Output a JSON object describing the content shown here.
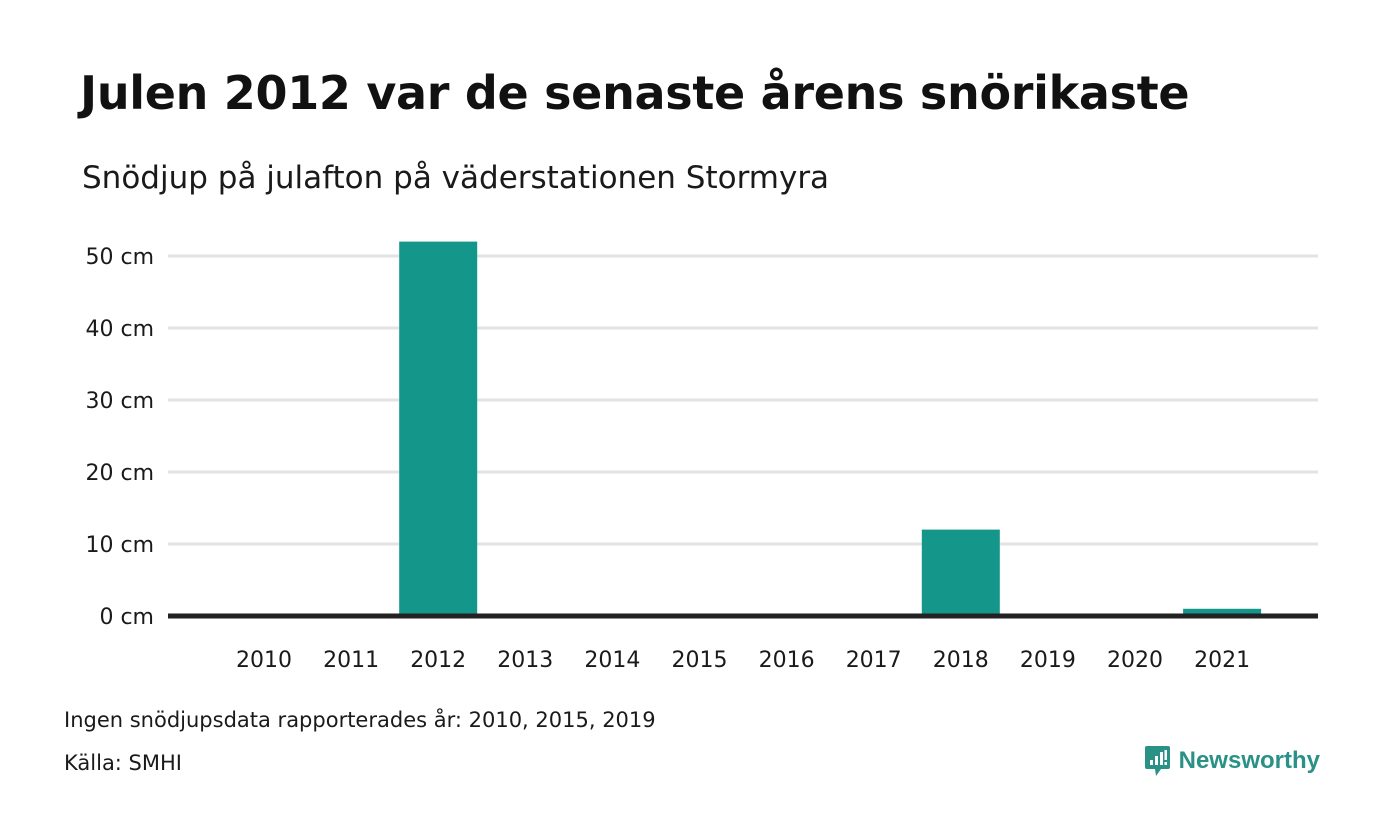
{
  "title": "Julen 2012 var de senaste årens snörikaste",
  "subtitle": "Snödjup på julafton på väderstationen Stormyra",
  "note": "Ingen snödjupsdata rapporterades år: 2010, 2015, 2019",
  "source": "Källa: SMHI",
  "brand": {
    "name": "Newsworthy",
    "icon": "newsworthy-logo-icon",
    "color": "#2a9186"
  },
  "colors": {
    "bar": "#14968a",
    "grid": "#e3e3e3",
    "baseline": "#222222"
  },
  "chart_data": {
    "type": "bar",
    "categories": [
      "2010",
      "2011",
      "2012",
      "2013",
      "2014",
      "2015",
      "2016",
      "2017",
      "2018",
      "2019",
      "2020",
      "2021"
    ],
    "values": [
      null,
      0,
      52,
      0,
      0,
      null,
      0,
      0,
      12,
      null,
      0,
      1
    ],
    "title": "Julen 2012 var de senaste årens snörikaste",
    "subtitle": "Snödjup på julafton på väderstationen Stormyra",
    "ylim": [
      0,
      50
    ],
    "yticks": [
      0,
      10,
      20,
      30,
      40,
      50
    ],
    "ytick_labels": [
      "0 cm",
      "10 cm",
      "20 cm",
      "30 cm",
      "40 cm",
      "50 cm"
    ],
    "grid": true,
    "legend": "none"
  }
}
